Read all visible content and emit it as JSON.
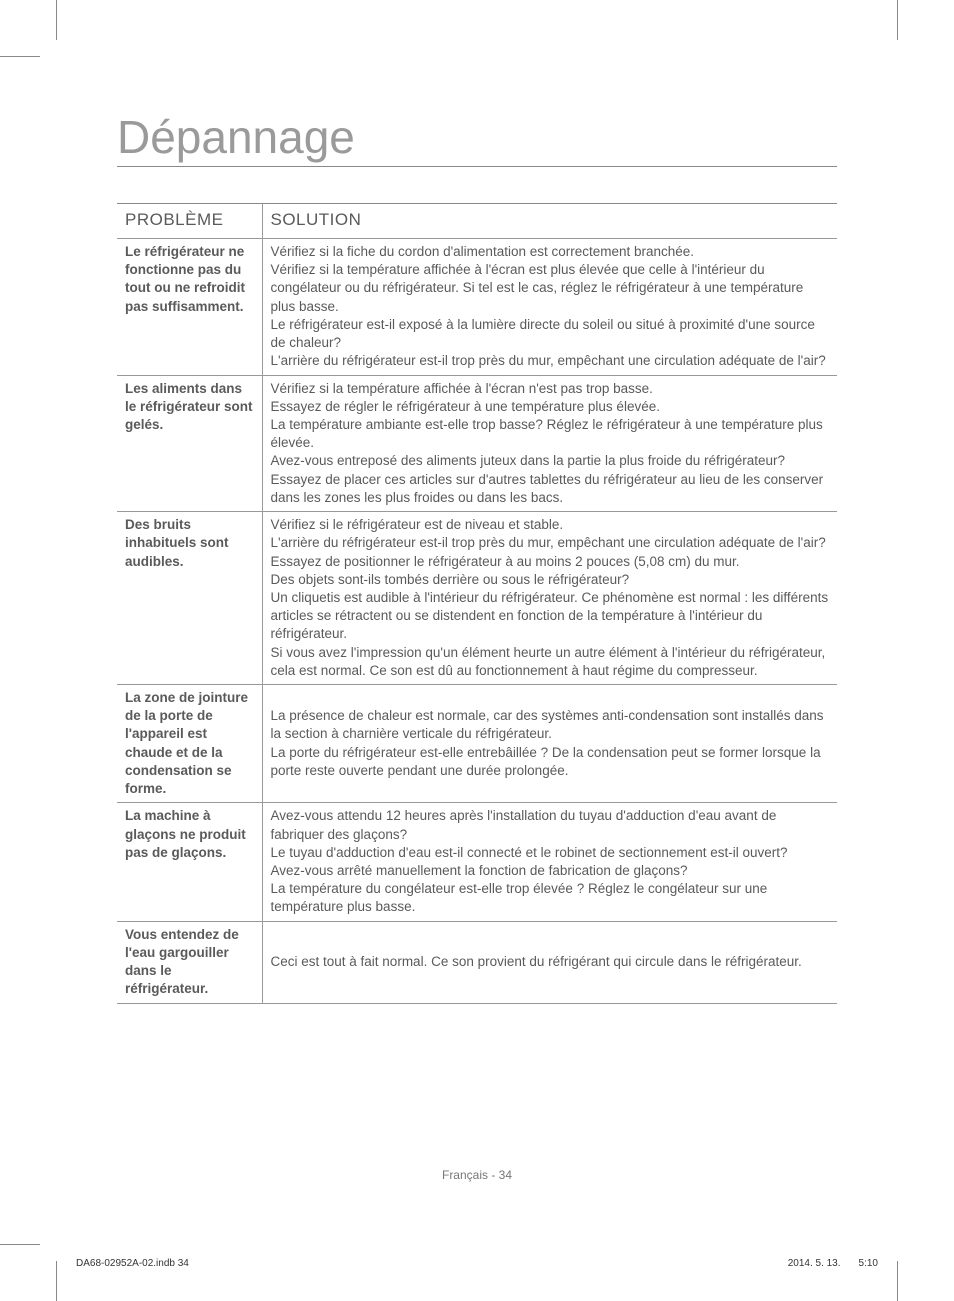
{
  "title": "Dépannage",
  "headers": {
    "problem": "PROBLÈME",
    "solution": "SOLUTION"
  },
  "rows": [
    {
      "problem": "Le réfrigérateur ne fonctionne pas du tout ou ne refroidit pas suffisamment.",
      "solution": "Vérifiez si la fiche du cordon d'alimentation est correctement branchée.\nVérifiez si la température affichée à l'écran est plus élevée que celle à l'intérieur du congélateur ou du réfrigérateur. Si tel est le cas, réglez le réfrigérateur à une température plus basse.\nLe réfrigérateur est-il exposé à la lumière directe du soleil ou situé à proximité d'une source de chaleur?\nL'arrière du réfrigérateur est-il trop près du mur, empêchant une circulation adéquate de l'air?"
    },
    {
      "problem": "Les aliments dans le réfrigérateur sont gelés.",
      "solution": "Vérifiez si la température affichée à l'écran n'est pas trop basse.\nEssayez de régler le réfrigérateur à une température plus élevée.\nLa température ambiante est-elle trop basse? Réglez le réfrigérateur à une température plus élevée.\nAvez-vous entreposé des aliments juteux dans la partie la plus froide du réfrigérateur? Essayez de placer ces articles sur d'autres tablettes du réfrigérateur au lieu de les conserver dans les zones les plus froides ou dans les bacs."
    },
    {
      "problem": "Des bruits inhabituels sont audibles.",
      "solution": "Vérifiez si le réfrigérateur est de niveau et stable.\nL'arrière du réfrigérateur est-il trop près du mur, empêchant une circulation adéquate de l'air?\nEssayez de positionner le réfrigérateur à au moins 2 pouces (5,08 cm) du mur.\nDes objets sont-ils tombés derrière ou sous le réfrigérateur?\nUn cliquetis est audible à l'intérieur du réfrigérateur. Ce phénomène est normal : les différents articles se rétractent ou se distendent en fonction de la température à l'intérieur du réfrigérateur.\nSi vous avez l'impression qu'un élément heurte un autre élément à l'intérieur du réfrigérateur, cela est normal. Ce son est dû au fonctionnement à haut régime du compresseur."
    },
    {
      "problem": "La zone de jointure de la porte de l'appareil est chaude et de la condensation se forme.",
      "solution": "La présence de chaleur est normale, car des systèmes anti-condensation sont installés dans la section à charnière verticale du réfrigérateur.\nLa porte du réfrigérateur est-elle entrebâillée ? De la condensation peut se former lorsque la porte reste ouverte pendant une durée prolongée."
    },
    {
      "problem": "La machine à glaçons ne produit pas de glaçons.",
      "solution": "Avez-vous attendu 12 heures après l'installation du tuyau d'adduction d'eau avant de fabriquer des glaçons?\nLe tuyau d'adduction d'eau est-il connecté et le robinet de sectionnement est-il ouvert?\nAvez-vous arrêté manuellement la fonction de fabrication de glaçons?\nLa température du congélateur est-elle trop élevée ? Réglez le congélateur sur une température plus basse."
    },
    {
      "problem": "Vous entendez de l'eau gargouiller dans le réfrigérateur.",
      "solution": "Ceci est tout à fait normal. Ce son provient du réfrigérant qui circule dans le réfrigérateur."
    }
  ],
  "page_footer": "Français - 34",
  "doc_footer": {
    "file": "DA68-02952A-02.indb   34",
    "date": "2014. 5. 13.",
    "time": "5:10"
  }
}
